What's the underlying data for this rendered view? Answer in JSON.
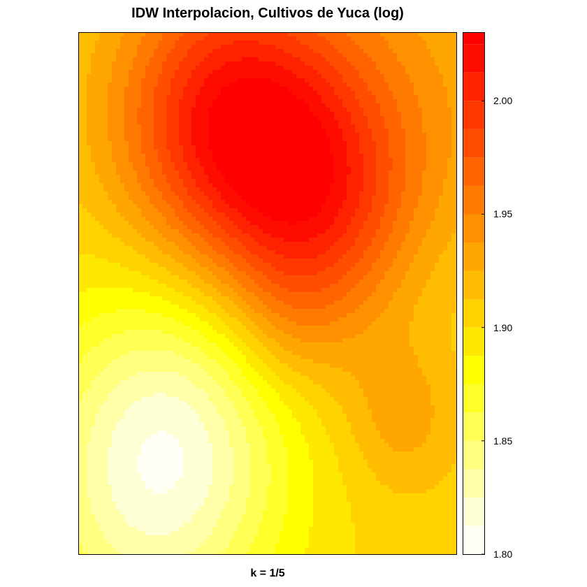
{
  "chart_data": {
    "type": "heatmap",
    "title": "IDW Interpolacion, Cultivos de Yuca (log)",
    "xlabel": "k = 1/5",
    "ylabel": "",
    "colorkey": {
      "range": [
        1.8,
        2.03
      ],
      "ticks": [
        {
          "value": 1.8,
          "label": "1.80"
        },
        {
          "value": 1.85,
          "label": "1.85"
        },
        {
          "value": 1.9,
          "label": "1.90"
        },
        {
          "value": 1.95,
          "label": "1.95"
        },
        {
          "value": 2.0,
          "label": "2.00"
        }
      ],
      "levels": [
        1.8,
        1.8125,
        1.825,
        1.8375,
        1.85,
        1.8625,
        1.875,
        1.8875,
        1.9,
        1.9125,
        1.925,
        1.9375,
        1.95,
        1.9625,
        1.975,
        1.9875,
        2.0,
        2.0125,
        2.025,
        2.03
      ],
      "colors": [
        "#FFFFF5",
        "#FFFFD5",
        "#FFFFAA",
        "#FFFF80",
        "#FFFF55",
        "#FFFF2A",
        "#FFFF00",
        "#FFE800",
        "#FFD200",
        "#FFBC00",
        "#FFA600",
        "#FF9000",
        "#FF7A00",
        "#FF6400",
        "#FF4E00",
        "#FF3800",
        "#FF2200",
        "#FF0C00",
        "#FF0000"
      ]
    },
    "field": {
      "x_range": [
        0,
        1
      ],
      "y_range": [
        0,
        1
      ],
      "base": 1.905,
      "influences": [
        {
          "x": 0.38,
          "y": 0.83,
          "amplitude": 0.1,
          "spread": 0.2
        },
        {
          "x": 0.62,
          "y": 0.68,
          "amplitude": 0.07,
          "spread": 0.18
        },
        {
          "x": 0.8,
          "y": 0.85,
          "amplitude": 0.03,
          "spread": 0.3
        },
        {
          "x": 0.25,
          "y": 0.22,
          "amplitude": -0.075,
          "spread": 0.22
        },
        {
          "x": 0.1,
          "y": 0.05,
          "amplitude": -0.03,
          "spread": 0.25
        },
        {
          "x": 0.85,
          "y": 0.27,
          "amplitude": 0.025,
          "spread": 0.1
        },
        {
          "x": 0.55,
          "y": 0.45,
          "amplitude": 0.015,
          "spread": 0.1
        },
        {
          "x": 0.95,
          "y": 0.5,
          "amplitude": -0.01,
          "spread": 0.15
        }
      ]
    }
  }
}
